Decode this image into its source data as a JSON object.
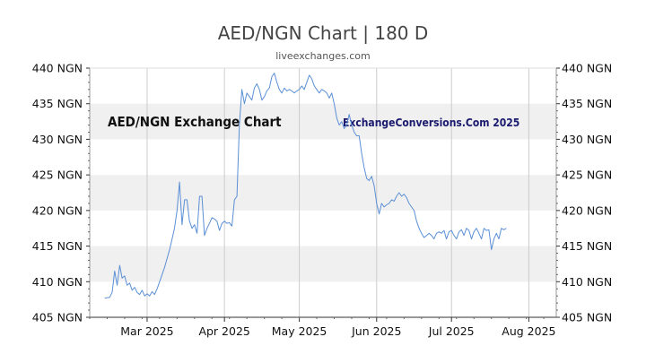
{
  "header": {
    "title": "AED/NGN Chart | 180 D",
    "subtitle": "liveexchanges.com"
  },
  "watermarks": {
    "left": "AED/NGN Exchange Chart",
    "right": "ExchangeConversions.Com 2025"
  },
  "colors": {
    "line": "#5b8fd6",
    "band": "#f0f0f0",
    "grid": "#cccccc",
    "axis": "#333333"
  },
  "chart_data": {
    "type": "line",
    "title": "AED/NGN Chart | 180 D",
    "subtitle": "liveexchanges.com",
    "xlabel": "",
    "ylabel": "",
    "ylim": [
      405,
      440
    ],
    "y_ticks": [
      405,
      410,
      415,
      420,
      425,
      430,
      435,
      440
    ],
    "y_tick_labels": [
      "405 NGN",
      "410 NGN",
      "415 NGN",
      "420 NGN",
      "425 NGN",
      "430 NGN",
      "435 NGN",
      "440 NGN"
    ],
    "xlim": [
      "2025-02-06",
      "2025-08-12"
    ],
    "x_ticks": [
      "2025-03-01",
      "2025-04-01",
      "2025-05-01",
      "2025-06-01",
      "2025-07-01",
      "2025-08-01"
    ],
    "x_tick_labels": [
      "Mar 2025",
      "Apr 2025",
      "May 2025",
      "Jun 2025",
      "Jul 2025",
      "Aug 2025"
    ],
    "grid": true,
    "dual_y_axis": true,
    "series": [
      {
        "values": [
          [
            "2025-02-12",
            407.7
          ],
          [
            "2025-02-14",
            407.8
          ],
          [
            "2025-02-15",
            408.5
          ],
          [
            "2025-02-16",
            411.5
          ],
          [
            "2025-02-17",
            409.5
          ],
          [
            "2025-02-18",
            412.3
          ],
          [
            "2025-02-19",
            410.5
          ],
          [
            "2025-02-20",
            410.8
          ],
          [
            "2025-02-21",
            409.5
          ],
          [
            "2025-02-22",
            409.8
          ],
          [
            "2025-02-23",
            408.8
          ],
          [
            "2025-02-24",
            409.2
          ],
          [
            "2025-02-25",
            408.5
          ],
          [
            "2025-02-26",
            408.2
          ],
          [
            "2025-02-27",
            408.8
          ],
          [
            "2025-02-28",
            408.0
          ],
          [
            "2025-03-01",
            408.3
          ],
          [
            "2025-03-02",
            408.0
          ],
          [
            "2025-03-03",
            408.6
          ],
          [
            "2025-03-04",
            408.2
          ],
          [
            "2025-03-05",
            409.0
          ],
          [
            "2025-03-06",
            410.0
          ],
          [
            "2025-03-08",
            412.0
          ],
          [
            "2025-03-10",
            414.5
          ],
          [
            "2025-03-11",
            416.0
          ],
          [
            "2025-03-12",
            417.5
          ],
          [
            "2025-03-13",
            420.0
          ],
          [
            "2025-03-14",
            424.0
          ],
          [
            "2025-03-15",
            418.0
          ],
          [
            "2025-03-16",
            421.5
          ],
          [
            "2025-03-17",
            421.5
          ],
          [
            "2025-03-18",
            418.5
          ],
          [
            "2025-03-19",
            417.5
          ],
          [
            "2025-03-20",
            418.0
          ],
          [
            "2025-03-21",
            416.8
          ],
          [
            "2025-03-22",
            422.0
          ],
          [
            "2025-03-23",
            422.0
          ],
          [
            "2025-03-24",
            416.5
          ],
          [
            "2025-03-25",
            417.5
          ],
          [
            "2025-03-26",
            418.2
          ],
          [
            "2025-03-27",
            419.0
          ],
          [
            "2025-03-28",
            418.8
          ],
          [
            "2025-03-29",
            418.5
          ],
          [
            "2025-03-30",
            417.2
          ],
          [
            "2025-03-31",
            418.2
          ],
          [
            "2025-04-01",
            418.5
          ],
          [
            "2025-04-02",
            418.2
          ],
          [
            "2025-04-03",
            418.3
          ],
          [
            "2025-04-04",
            417.8
          ],
          [
            "2025-04-05",
            421.5
          ],
          [
            "2025-04-06",
            422.0
          ],
          [
            "2025-04-07",
            432.0
          ],
          [
            "2025-04-08",
            437.0
          ],
          [
            "2025-04-09",
            435.0
          ],
          [
            "2025-04-10",
            436.5
          ],
          [
            "2025-04-11",
            436.0
          ],
          [
            "2025-04-12",
            435.5
          ],
          [
            "2025-04-13",
            437.2
          ],
          [
            "2025-04-14",
            437.8
          ],
          [
            "2025-04-15",
            437.0
          ],
          [
            "2025-04-16",
            435.5
          ],
          [
            "2025-04-17",
            436.0
          ],
          [
            "2025-04-18",
            436.8
          ],
          [
            "2025-04-19",
            437.2
          ],
          [
            "2025-04-20",
            438.8
          ],
          [
            "2025-04-21",
            439.3
          ],
          [
            "2025-04-22",
            438.0
          ],
          [
            "2025-04-23",
            437.0
          ],
          [
            "2025-04-24",
            436.5
          ],
          [
            "2025-04-25",
            437.2
          ],
          [
            "2025-04-26",
            436.8
          ],
          [
            "2025-04-27",
            437.0
          ],
          [
            "2025-04-28",
            436.8
          ],
          [
            "2025-04-29",
            436.5
          ],
          [
            "2025-04-30",
            436.8
          ],
          [
            "2025-05-01",
            437.0
          ],
          [
            "2025-05-02",
            437.5
          ],
          [
            "2025-05-03",
            437.0
          ],
          [
            "2025-05-04",
            438.0
          ],
          [
            "2025-05-05",
            439.0
          ],
          [
            "2025-05-06",
            438.5
          ],
          [
            "2025-05-07",
            437.5
          ],
          [
            "2025-05-08",
            437.0
          ],
          [
            "2025-05-09",
            436.5
          ],
          [
            "2025-05-10",
            437.0
          ],
          [
            "2025-05-11",
            436.8
          ],
          [
            "2025-05-12",
            436.5
          ],
          [
            "2025-05-13",
            435.8
          ],
          [
            "2025-05-14",
            436.5
          ],
          [
            "2025-05-15",
            435.0
          ],
          [
            "2025-05-16",
            433.0
          ],
          [
            "2025-05-17",
            432.0
          ],
          [
            "2025-05-18",
            432.5
          ],
          [
            "2025-05-19",
            431.5
          ],
          [
            "2025-05-20",
            432.0
          ],
          [
            "2025-05-21",
            433.5
          ],
          [
            "2025-05-22",
            432.0
          ],
          [
            "2025-05-23",
            431.0
          ],
          [
            "2025-05-24",
            430.5
          ],
          [
            "2025-05-25",
            430.5
          ],
          [
            "2025-05-26",
            428.0
          ],
          [
            "2025-05-27",
            426.0
          ],
          [
            "2025-05-28",
            424.5
          ],
          [
            "2025-05-29",
            424.2
          ],
          [
            "2025-05-30",
            424.8
          ],
          [
            "2025-05-31",
            423.5
          ],
          [
            "2025-06-01",
            421.0
          ],
          [
            "2025-06-02",
            419.5
          ],
          [
            "2025-06-03",
            421.0
          ],
          [
            "2025-06-04",
            420.5
          ],
          [
            "2025-06-05",
            420.8
          ],
          [
            "2025-06-06",
            421.0
          ],
          [
            "2025-06-07",
            421.5
          ],
          [
            "2025-06-08",
            421.3
          ],
          [
            "2025-06-09",
            422.0
          ],
          [
            "2025-06-10",
            422.5
          ],
          [
            "2025-06-11",
            422.0
          ],
          [
            "2025-06-12",
            422.3
          ],
          [
            "2025-06-13",
            421.8
          ],
          [
            "2025-06-14",
            421.0
          ],
          [
            "2025-06-15",
            420.5
          ],
          [
            "2025-06-16",
            420.0
          ],
          [
            "2025-06-17",
            418.5
          ],
          [
            "2025-06-18",
            417.5
          ],
          [
            "2025-06-19",
            416.8
          ],
          [
            "2025-06-20",
            416.2
          ],
          [
            "2025-06-21",
            416.5
          ],
          [
            "2025-06-22",
            416.8
          ],
          [
            "2025-06-23",
            416.5
          ],
          [
            "2025-06-24",
            416.0
          ],
          [
            "2025-06-25",
            416.8
          ],
          [
            "2025-06-26",
            417.0
          ],
          [
            "2025-06-27",
            416.8
          ],
          [
            "2025-06-28",
            417.2
          ],
          [
            "2025-06-29",
            416.0
          ],
          [
            "2025-06-30",
            417.0
          ],
          [
            "2025-07-01",
            417.2
          ],
          [
            "2025-07-02",
            416.5
          ],
          [
            "2025-07-03",
            416.0
          ],
          [
            "2025-07-04",
            417.0
          ],
          [
            "2025-07-05",
            417.3
          ],
          [
            "2025-07-06",
            416.5
          ],
          [
            "2025-07-07",
            417.5
          ],
          [
            "2025-07-08",
            417.2
          ],
          [
            "2025-07-09",
            416.0
          ],
          [
            "2025-07-10",
            417.0
          ],
          [
            "2025-07-11",
            417.5
          ],
          [
            "2025-07-12",
            416.8
          ],
          [
            "2025-07-13",
            416.0
          ],
          [
            "2025-07-14",
            417.5
          ],
          [
            "2025-07-15",
            417.2
          ],
          [
            "2025-07-16",
            417.3
          ],
          [
            "2025-07-17",
            414.5
          ],
          [
            "2025-07-18",
            416.0
          ],
          [
            "2025-07-19",
            416.8
          ],
          [
            "2025-07-20",
            416.0
          ],
          [
            "2025-07-21",
            417.5
          ],
          [
            "2025-07-22",
            417.3
          ],
          [
            "2025-07-23",
            417.5
          ]
        ]
      }
    ]
  }
}
